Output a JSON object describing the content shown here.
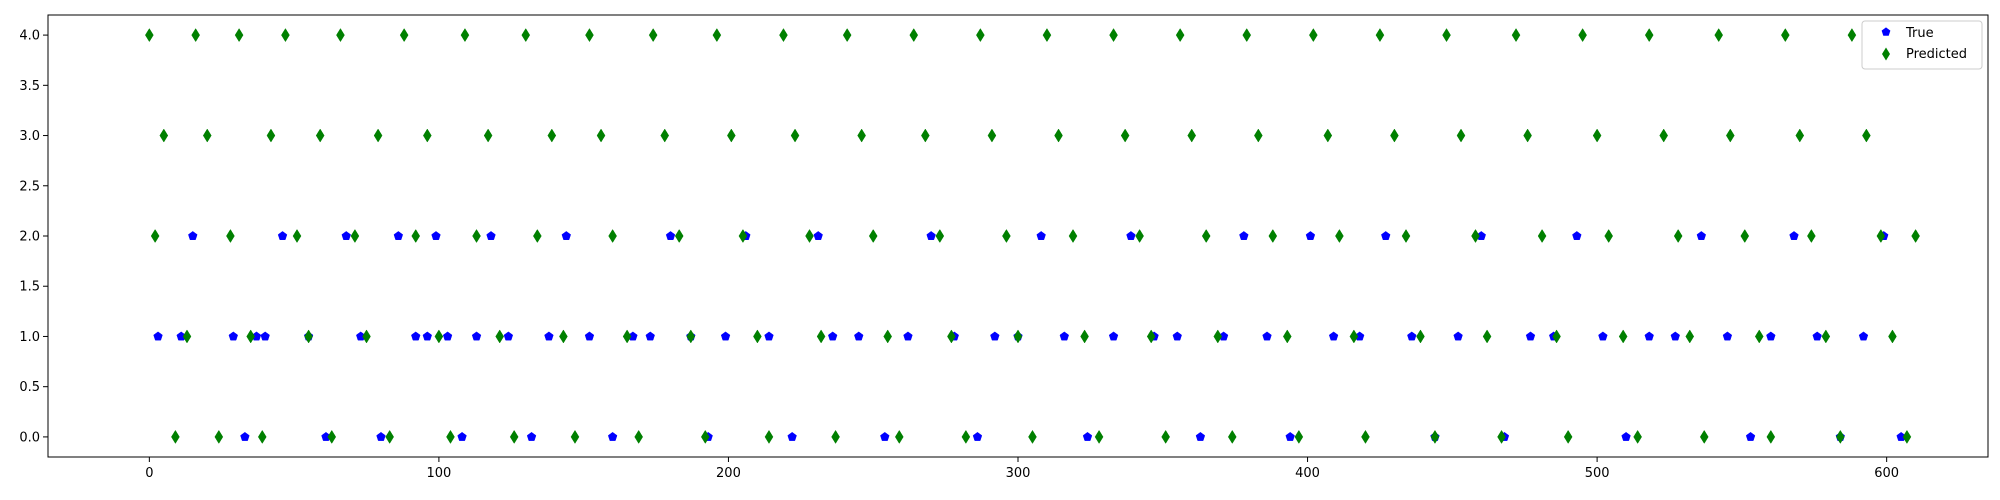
{
  "chart_data": {
    "type": "scatter",
    "title": "",
    "xlabel": "",
    "ylabel": "",
    "xlim": [
      -35,
      635
    ],
    "ylim": [
      -0.2,
      4.2
    ],
    "xticks": [
      0,
      100,
      200,
      300,
      400,
      500,
      600
    ],
    "xtick_labels": [
      "0",
      "100",
      "200",
      "300",
      "400",
      "500",
      "600"
    ],
    "yticks": [
      0.0,
      0.5,
      1.0,
      1.5,
      2.0,
      2.5,
      3.0,
      3.5,
      4.0
    ],
    "ytick_labels": [
      "0.0",
      "0.5",
      "1.0",
      "1.5",
      "2.0",
      "2.5",
      "3.0",
      "3.5",
      "4.0"
    ],
    "grid": false,
    "legend": "top-right",
    "series": [
      {
        "name": "True",
        "marker": "pentagon",
        "color": "#0000ff",
        "x": [
          3,
          11,
          15,
          29,
          33,
          37,
          40,
          46,
          55,
          61,
          68,
          73,
          80,
          86,
          92,
          96,
          99,
          103,
          108,
          113,
          118,
          124,
          132,
          138,
          144,
          152,
          160,
          167,
          173,
          180,
          187,
          193,
          199,
          206,
          214,
          222,
          231,
          236,
          245,
          254,
          262,
          270,
          278,
          286,
          292,
          300,
          308,
          316,
          324,
          333,
          339,
          347,
          355,
          363,
          371,
          378,
          386,
          394,
          401,
          409,
          418,
          427,
          436,
          444,
          452,
          460,
          468,
          477,
          485,
          493,
          502,
          510,
          518,
          527,
          536,
          545,
          553,
          560,
          568,
          576,
          584,
          592,
          599,
          605
        ],
        "y": [
          1,
          1,
          2,
          1,
          0,
          1,
          1,
          2,
          1,
          0,
          2,
          1,
          0,
          2,
          1,
          1,
          2,
          1,
          0,
          1,
          2,
          1,
          0,
          1,
          2,
          1,
          0,
          1,
          1,
          2,
          1,
          0,
          1,
          2,
          1,
          0,
          2,
          1,
          1,
          0,
          1,
          2,
          1,
          0,
          1,
          1,
          2,
          1,
          0,
          1,
          2,
          1,
          1,
          0,
          1,
          2,
          1,
          0,
          2,
          1,
          1,
          2,
          1,
          0,
          1,
          2,
          0,
          1,
          1,
          2,
          1,
          0,
          1,
          1,
          2,
          1,
          0,
          1,
          2,
          1,
          0,
          1,
          2,
          0
        ]
      },
      {
        "name": "Predicted",
        "marker": "thin_diamond",
        "color": "#008000",
        "x": [
          0,
          2,
          5,
          9,
          13,
          16,
          20,
          24,
          28,
          31,
          35,
          39,
          42,
          47,
          51,
          55,
          59,
          63,
          66,
          71,
          75,
          79,
          83,
          88,
          92,
          96,
          100,
          104,
          109,
          113,
          117,
          121,
          126,
          130,
          134,
          139,
          143,
          147,
          152,
          156,
          160,
          165,
          169,
          174,
          178,
          183,
          187,
          192,
          196,
          201,
          205,
          210,
          214,
          219,
          223,
          228,
          232,
          237,
          241,
          246,
          250,
          255,
          259,
          264,
          268,
          273,
          277,
          282,
          287,
          291,
          296,
          300,
          305,
          310,
          314,
          319,
          323,
          328,
          333,
          337,
          342,
          346,
          351,
          356,
          360,
          365,
          369,
          374,
          379,
          383,
          388,
          393,
          397,
          402,
          407,
          411,
          416,
          420,
          425,
          430,
          434,
          439,
          444,
          448,
          453,
          458,
          462,
          467,
          472,
          476,
          481,
          486,
          490,
          495,
          500,
          504,
          509,
          514,
          518,
          523,
          528,
          532,
          537,
          542,
          546,
          551,
          556,
          560,
          565,
          570,
          574,
          579,
          584,
          588,
          593,
          598,
          602,
          607,
          610
        ],
        "y": [
          4,
          2,
          3,
          0,
          1,
          4,
          3,
          0,
          2,
          4,
          1,
          0,
          3,
          4,
          2,
          1,
          3,
          0,
          4,
          2,
          1,
          3,
          0,
          4,
          2,
          3,
          1,
          0,
          4,
          2,
          3,
          1,
          0,
          4,
          2,
          3,
          1,
          0,
          4,
          3,
          2,
          1,
          0,
          4,
          3,
          2,
          1,
          0,
          4,
          3,
          2,
          1,
          0,
          4,
          3,
          2,
          1,
          0,
          4,
          3,
          2,
          1,
          0,
          4,
          3,
          2,
          1,
          0,
          4,
          3,
          2,
          1,
          0,
          4,
          3,
          2,
          1,
          0,
          4,
          3,
          2,
          1,
          0,
          4,
          3,
          2,
          1,
          0,
          4,
          3,
          2,
          1,
          0,
          4,
          3,
          2,
          1,
          0,
          4,
          3,
          2,
          1,
          0,
          4,
          3,
          2,
          1,
          0,
          4,
          3,
          2,
          1,
          0,
          4,
          3,
          2,
          1,
          0,
          4,
          3,
          2,
          1,
          0,
          4,
          3,
          2,
          1,
          0,
          4,
          3,
          2,
          1,
          0,
          4,
          3,
          2,
          1,
          0,
          2
        ]
      }
    ]
  }
}
